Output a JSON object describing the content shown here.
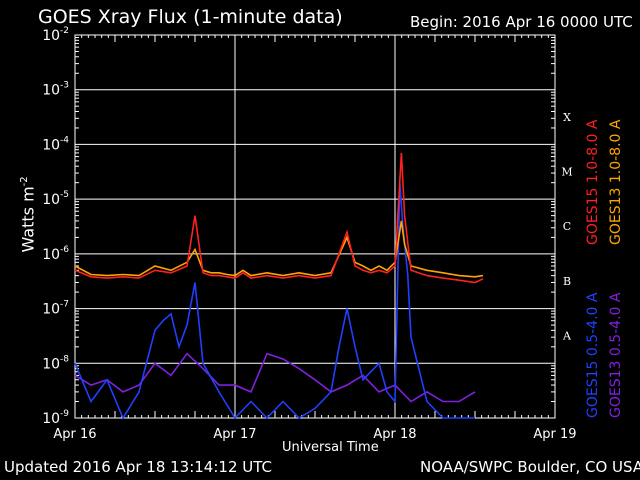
{
  "header": {
    "title": "GOES Xray Flux (1-minute data)",
    "begin_label": "Begin:  2016 Apr 16 0000 UTC"
  },
  "footer": {
    "updated": "Updated 2016 Apr 18 13:14:12 UTC",
    "credit": "NOAA/SWPC Boulder, CO USA"
  },
  "chart_data": {
    "type": "line",
    "title": "GOES Xray Flux (1-minute data)",
    "xlabel": "Universal Time",
    "ylabel": "Watts m",
    "ylabel_sup": "-2",
    "y_scale": "log",
    "ylim": [
      1e-09,
      0.01
    ],
    "xlim": [
      "2016-04-16",
      "2016-04-19"
    ],
    "grid": true,
    "x_ticks": [
      "Apr 16",
      "Apr 17",
      "Apr 18",
      "Apr 19"
    ],
    "y_ticks": [
      {
        "base": "10",
        "exp": "-2"
      },
      {
        "base": "10",
        "exp": "-3"
      },
      {
        "base": "10",
        "exp": "-4"
      },
      {
        "base": "10",
        "exp": "-5"
      },
      {
        "base": "10",
        "exp": "-6"
      },
      {
        "base": "10",
        "exp": "-7"
      },
      {
        "base": "10",
        "exp": "-8"
      },
      {
        "base": "10",
        "exp": "-9"
      }
    ],
    "flare_classes": [
      "X",
      "M",
      "C",
      "B",
      "A"
    ],
    "legend": [
      {
        "name": "GOES15 1.0-8.0 A",
        "color": "#ff2020"
      },
      {
        "name": "GOES13 1.0-8.0 A",
        "color": "#ffa500"
      },
      {
        "name": "GOES15 0.5-4.0 A",
        "color": "#2040ff"
      },
      {
        "name": "GOES13 0.5-4.0 A",
        "color": "#8020e0"
      }
    ],
    "series": [
      {
        "name": "GOES13 1.0-8.0 A",
        "color": "#ffa500",
        "x": [
          0,
          0.1,
          0.2,
          0.3,
          0.4,
          0.5,
          0.6,
          0.7,
          0.75,
          0.8,
          0.85,
          0.9,
          0.95,
          1.0,
          1.05,
          1.1,
          1.2,
          1.3,
          1.4,
          1.5,
          1.6,
          1.7,
          1.75,
          1.8,
          1.85,
          1.9,
          1.95,
          2.0,
          2.04,
          2.06,
          2.1,
          2.2,
          2.3,
          2.4,
          2.5,
          2.55
        ],
        "y": [
          6e-07,
          4.2e-07,
          4e-07,
          4.2e-07,
          4e-07,
          6e-07,
          5e-07,
          7e-07,
          1.2e-06,
          5e-07,
          4.5e-07,
          4.5e-07,
          4.2e-07,
          4e-07,
          5e-07,
          4e-07,
          4.5e-07,
          4e-07,
          4.5e-07,
          4e-07,
          4.5e-07,
          2e-06,
          7e-07,
          6e-07,
          5e-07,
          6e-07,
          5e-07,
          7e-07,
          4e-06,
          1.5e-06,
          6e-07,
          5e-07,
          4.5e-07,
          4e-07,
          3.8e-07,
          4e-07
        ]
      },
      {
        "name": "GOES15 1.0-8.0 A",
        "color": "#ff2020",
        "x": [
          0,
          0.1,
          0.2,
          0.3,
          0.4,
          0.5,
          0.6,
          0.7,
          0.75,
          0.8,
          0.85,
          0.9,
          0.95,
          1.0,
          1.05,
          1.1,
          1.2,
          1.3,
          1.4,
          1.5,
          1.6,
          1.7,
          1.75,
          1.8,
          1.85,
          1.9,
          1.95,
          2.0,
          2.04,
          2.06,
          2.1,
          2.2,
          2.3,
          2.4,
          2.5,
          2.55
        ],
        "y": [
          5e-07,
          3.8e-07,
          3.6e-07,
          3.8e-07,
          3.6e-07,
          5e-07,
          4.5e-07,
          6e-07,
          5e-06,
          4.5e-07,
          4e-07,
          4e-07,
          3.8e-07,
          3.6e-07,
          4.5e-07,
          3.6e-07,
          4e-07,
          3.6e-07,
          4e-07,
          3.6e-07,
          4e-07,
          2.5e-06,
          6e-07,
          5e-07,
          4.5e-07,
          5e-07,
          4.5e-07,
          6e-07,
          7e-05,
          5e-06,
          5e-07,
          4e-07,
          3.6e-07,
          3.3e-07,
          3e-07,
          3.5e-07
        ]
      },
      {
        "name": "GOES15 0.5-4.0 A",
        "color": "#2040ff",
        "x": [
          0,
          0.1,
          0.2,
          0.3,
          0.4,
          0.5,
          0.55,
          0.6,
          0.65,
          0.7,
          0.75,
          0.8,
          0.9,
          1.0,
          1.1,
          1.2,
          1.3,
          1.4,
          1.5,
          1.6,
          1.65,
          1.7,
          1.75,
          1.8,
          1.9,
          1.95,
          2.0,
          2.03,
          2.05,
          2.08,
          2.1,
          2.2,
          2.3,
          2.4,
          2.5
        ],
        "y": [
          1e-08,
          2e-09,
          5e-09,
          1e-09,
          3e-09,
          4e-08,
          6e-08,
          8e-08,
          2e-08,
          5e-08,
          3e-07,
          1e-08,
          3e-09,
          1e-09,
          2e-09,
          1e-09,
          2e-09,
          1e-09,
          1.5e-09,
          3e-09,
          2e-08,
          1e-07,
          2e-08,
          5e-09,
          1e-08,
          3e-09,
          2e-09,
          2e-05,
          3e-06,
          4e-07,
          3e-08,
          2e-09,
          1e-09,
          1e-09,
          1e-09
        ]
      },
      {
        "name": "GOES13 0.5-4.0 A",
        "color": "#8020e0",
        "x": [
          0,
          0.1,
          0.2,
          0.3,
          0.4,
          0.5,
          0.6,
          0.7,
          0.8,
          0.9,
          1.0,
          1.1,
          1.2,
          1.3,
          1.4,
          1.5,
          1.6,
          1.7,
          1.8,
          1.9,
          2.0,
          2.1,
          2.2,
          2.3,
          2.4,
          2.5
        ],
        "y": [
          6e-09,
          4e-09,
          5e-09,
          3e-09,
          4e-09,
          1e-08,
          6e-09,
          1.5e-08,
          8e-09,
          4e-09,
          4e-09,
          3e-09,
          1.5e-08,
          1.2e-08,
          8e-09,
          5e-09,
          3e-09,
          4e-09,
          6e-09,
          3e-09,
          4e-09,
          2e-09,
          3e-09,
          2e-09,
          2e-09,
          3e-09
        ]
      }
    ]
  }
}
